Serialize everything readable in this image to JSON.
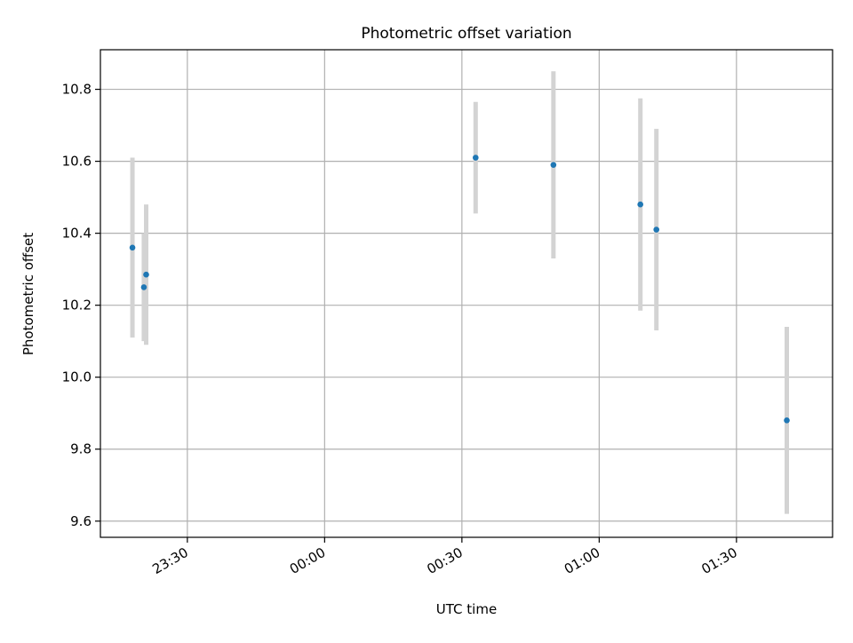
{
  "chart_data": {
    "type": "scatter",
    "title": "Photometric offset variation",
    "xlabel": "UTC time",
    "ylabel": "Photometric offset",
    "x_ticks": [
      "23:30",
      "00:00",
      "00:30",
      "01:00",
      "01:30"
    ],
    "y_ticks": [
      "9.6",
      "9.8",
      "10.0",
      "10.2",
      "10.4",
      "10.6",
      "10.8"
    ],
    "xlim": [
      "23:11",
      "01:51"
    ],
    "ylim": [
      9.555,
      10.91
    ],
    "grid": true,
    "points": [
      {
        "x": "23:18",
        "y": 10.36,
        "err": 0.25
      },
      {
        "x": "23:20:30",
        "y": 10.25,
        "err": 0.15
      },
      {
        "x": "23:21",
        "y": 10.285,
        "err": 0.195
      },
      {
        "x": "00:33",
        "y": 10.61,
        "err": 0.155
      },
      {
        "x": "00:50",
        "y": 10.59,
        "err": 0.26
      },
      {
        "x": "01:09",
        "y": 10.48,
        "err": 0.295
      },
      {
        "x": "01:12:30",
        "y": 10.41,
        "err": 0.28
      },
      {
        "x": "01:41",
        "y": 9.88,
        "err": 0.26
      }
    ],
    "colors": {
      "points": "#1f77b4",
      "errorbars": "#d3d3d3",
      "grid": "#b0b0b0"
    }
  }
}
